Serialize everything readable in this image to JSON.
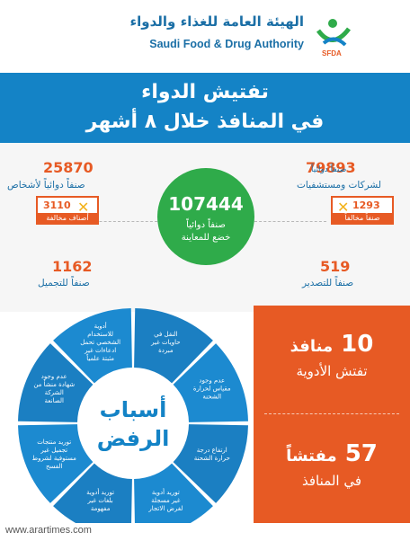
{
  "header": {
    "org_name_ar": "الهيئة العامة للغذاء والدواء",
    "org_name_en": "Saudi Food & Drug Authority",
    "logo_text": "SFDA"
  },
  "banner": {
    "line1": "تفتيش الدواء",
    "line2": "في المنافذ خلال ٨ أشهر"
  },
  "stats": {
    "center": {
      "value": "107444",
      "line1": "صنفاً دوائياً",
      "line2": "خضع للمعاينة"
    },
    "companies": {
      "value": "79893",
      "line1": "صنفاً دوائياً",
      "line2": "لشركات ومستشفيات"
    },
    "companies_violations": {
      "value": "1293",
      "label": "صنفاً مخالفاً"
    },
    "individuals": {
      "value": "25870",
      "line1": "صنفاً دوائياً لأشخاص"
    },
    "individuals_violations": {
      "value": "3110",
      "label": "أصناف مخالفة"
    },
    "export": {
      "value": "519",
      "label": "صنفاً للتصدير"
    },
    "cosmetic": {
      "value": "1162",
      "label": "صنفاً للتجميل"
    }
  },
  "reasons": {
    "title_line1": "أسباب",
    "title_line2": "الرفض",
    "items": [
      "النقل في حاويات غير مبردة",
      "عدم وجود مقياس لحرارة الشحنة",
      "ارتفاع درجة حرارة الشحنة",
      "توريد أدوية غير مسجلة لغرض الاتجار",
      "توريد أدوية بلغات غير مفهومة",
      "توريد منتجات تجميل غير مستوفية لشروط الفسح",
      "عدم وجود شهادة منشأ من الشركة الصانعة",
      "أدوية للاستخدام الشخصي تحمل ادعاءات غير مثبتة علمياً"
    ]
  },
  "ports": {
    "count": "10",
    "count_label_top": "منافذ",
    "count_label": "تفتش الأدوية",
    "inspectors": "57",
    "inspectors_label_top": "مفتشاً",
    "inspectors_label": "في المنافذ"
  },
  "footer": {
    "url": "www.arartimes.com"
  },
  "colors": {
    "blue": "#1483c6",
    "orange": "#e75a24",
    "green": "#2fab4a",
    "yellow": "#f2b21a"
  }
}
